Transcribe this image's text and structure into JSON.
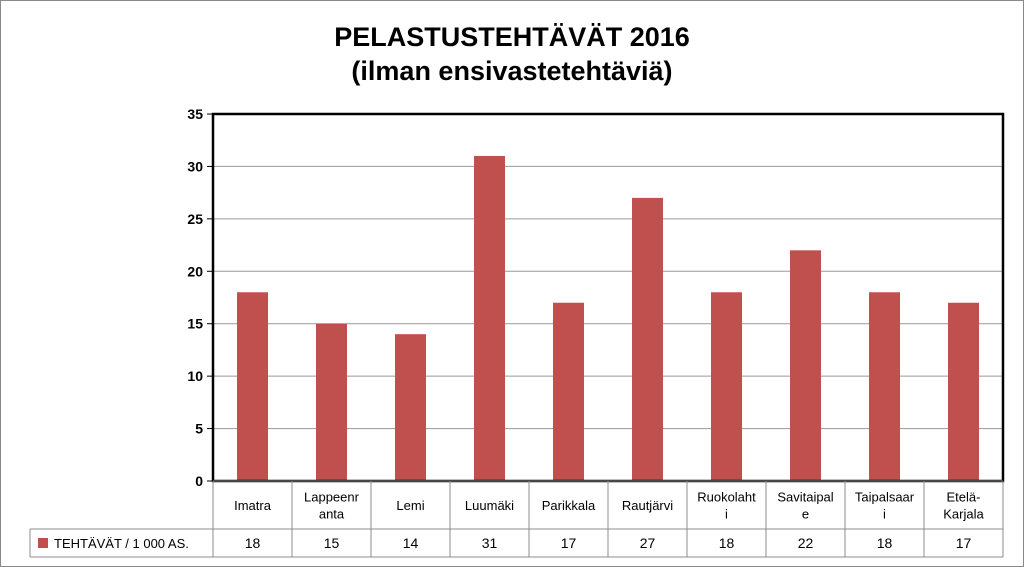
{
  "chart_data": {
    "type": "bar",
    "title": "PELASTUSTEHTÄVÄT 2016",
    "subtitle": "(ilman ensivastetehtäviä)",
    "categories": [
      "Imatra",
      "Lappeenranta",
      "Lemi",
      "Luumäki",
      "Parikkala",
      "Rautjärvi",
      "Ruokolahti",
      "Savitaipale",
      "Taipalsaari",
      "Etelä-Karjala"
    ],
    "category_lines": [
      [
        "Imatra"
      ],
      [
        "Lappeenr",
        "anta"
      ],
      [
        "Lemi"
      ],
      [
        "Luumäki"
      ],
      [
        "Parikkala"
      ],
      [
        "Rautjärvi"
      ],
      [
        "Ruokolaht",
        "i"
      ],
      [
        "Savitaipal",
        "e"
      ],
      [
        "Taipalsaar",
        "i"
      ],
      [
        "Etelä-",
        "Karjala"
      ]
    ],
    "series": [
      {
        "name": "TEHTÄVÄT / 1 000 AS.",
        "values": [
          18,
          15,
          14,
          31,
          17,
          27,
          18,
          22,
          18,
          17
        ],
        "color": "#C0504D"
      }
    ],
    "ylim": [
      0,
      35
    ],
    "yticks": [
      0,
      5,
      10,
      15,
      20,
      25,
      30,
      35
    ],
    "grid": true,
    "data_table": true,
    "legend": "data-table-left"
  }
}
